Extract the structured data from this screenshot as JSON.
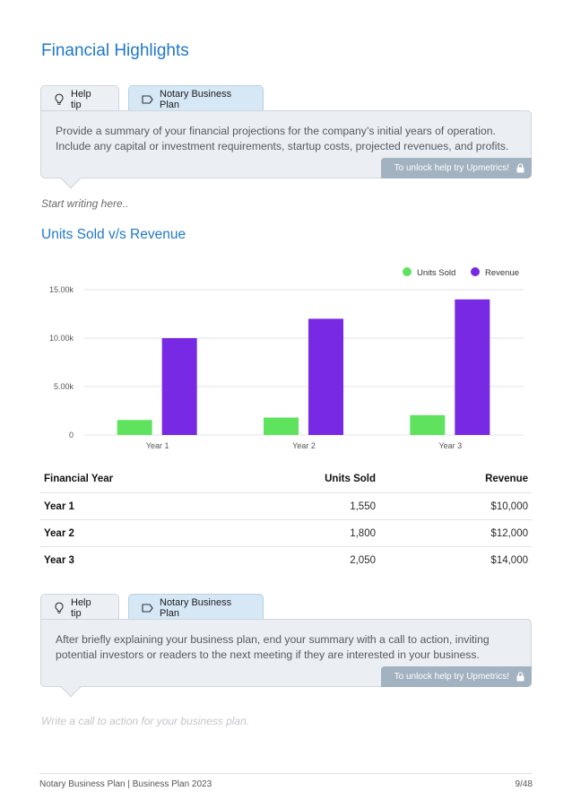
{
  "section_title": "Financial Highlights",
  "help_tip_1": {
    "tab_help": "Help tip",
    "tab_plan": "Notary Business Plan",
    "text": "Provide a summary of your financial projections for the company’s initial years of operation. Include any capital or investment requirements, startup costs, projected revenues, and profits.",
    "unlock": "To unlock help try Upmetrics!"
  },
  "placeholder_1": "Start writing here..",
  "chart_heading": "Units Sold v/s Revenue",
  "chart_data": {
    "type": "bar",
    "categories": [
      "Year 1",
      "Year 2",
      "Year 3"
    ],
    "series": [
      {
        "name": "Units Sold",
        "values": [
          1550,
          1800,
          2050
        ],
        "color": "#5fe35f"
      },
      {
        "name": "Revenue",
        "values": [
          10000,
          12000,
          14000
        ],
        "color": "#7729e4"
      }
    ],
    "yticks": [
      "0",
      "5.00k",
      "10.00k",
      "15.00k"
    ],
    "ytick_values": [
      0,
      5000,
      10000,
      15000
    ],
    "ylim": [
      0,
      15000
    ],
    "legend_position": "top-right",
    "grid": true
  },
  "table": {
    "headers": [
      "Financial Year",
      "Units Sold",
      "Revenue"
    ],
    "rows": [
      [
        "Year 1",
        "1,550",
        "$10,000"
      ],
      [
        "Year 2",
        "1,800",
        "$12,000"
      ],
      [
        "Year 3",
        "2,050",
        "$14,000"
      ]
    ]
  },
  "help_tip_2": {
    "tab_help": "Help tip",
    "tab_plan": "Notary Business Plan",
    "text": "After briefly explaining your business plan, end your summary with a call to action, inviting potential investors or readers to the next meeting if they are interested in your business.",
    "unlock": "To unlock help try Upmetrics!"
  },
  "placeholder_2": "Write a call to action for your business plan.",
  "footer": {
    "left": "Notary Business Plan | Business Plan 2023",
    "right": "9/48"
  }
}
